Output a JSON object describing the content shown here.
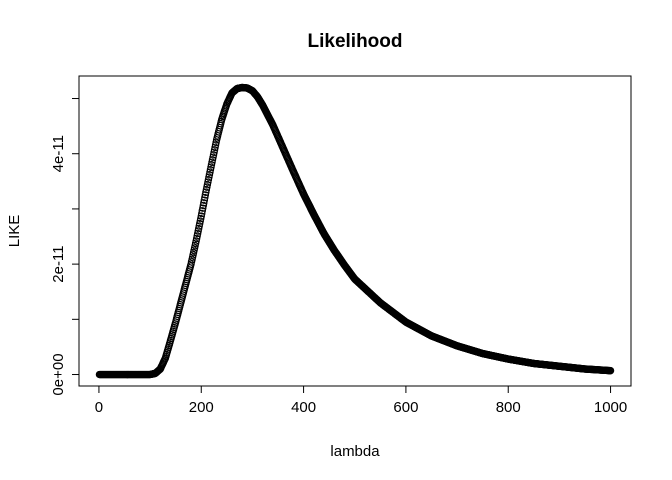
{
  "chart_data": {
    "type": "scatter",
    "title": "Likelihood",
    "xlabel": "lambda",
    "ylabel": "LIKE",
    "xlim": [
      1,
      1000
    ],
    "ylim": [
      0,
      5.2e-11
    ],
    "x_ticks": [
      {
        "value": 0,
        "label": "0"
      },
      {
        "value": 200,
        "label": "200"
      },
      {
        "value": 400,
        "label": "400"
      },
      {
        "value": 600,
        "label": "600"
      },
      {
        "value": 800,
        "label": "800"
      },
      {
        "value": 1000,
        "label": "1000"
      }
    ],
    "y_ticks": [
      {
        "value": 0,
        "label": "0e+00"
      },
      {
        "value": 1e-11,
        "label": ""
      },
      {
        "value": 2e-11,
        "label": "2e-11"
      },
      {
        "value": 3e-11,
        "label": ""
      },
      {
        "value": 4e-11,
        "label": "4e-11"
      },
      {
        "value": 5e-11,
        "label": ""
      }
    ],
    "grid": false,
    "marker": "open-circle",
    "color": "#000000",
    "series": [
      {
        "x": [
          1,
          50,
          100,
          110,
          120,
          130,
          140,
          150,
          160,
          170,
          180,
          190,
          200,
          210,
          220,
          230,
          240,
          250,
          260,
          270,
          280,
          290,
          300,
          310,
          320,
          340,
          360,
          380,
          400,
          420,
          440,
          460,
          480,
          500,
          550,
          600,
          650,
          700,
          750,
          800,
          850,
          900,
          950,
          1000
        ],
        "values": [
          0,
          0,
          0,
          2e-13,
          1e-12,
          3e-12,
          6.2e-12,
          9.5e-12,
          1.3e-11,
          1.65e-11,
          2e-11,
          2.42e-11,
          2.87e-11,
          3.35e-11,
          3.8e-11,
          4.25e-11,
          4.62e-11,
          4.9e-11,
          5.1e-11,
          5.18e-11,
          5.2e-11,
          5.19e-11,
          5.14e-11,
          5.03e-11,
          4.88e-11,
          4.52e-11,
          4.1e-11,
          3.68e-11,
          3.27e-11,
          2.9e-11,
          2.55e-11,
          2.25e-11,
          1.98e-11,
          1.73e-11,
          1.3e-11,
          9.5e-12,
          7e-12,
          5.2e-12,
          3.8e-12,
          2.8e-12,
          2e-12,
          1.5e-12,
          1e-12,
          7e-13
        ]
      }
    ]
  }
}
